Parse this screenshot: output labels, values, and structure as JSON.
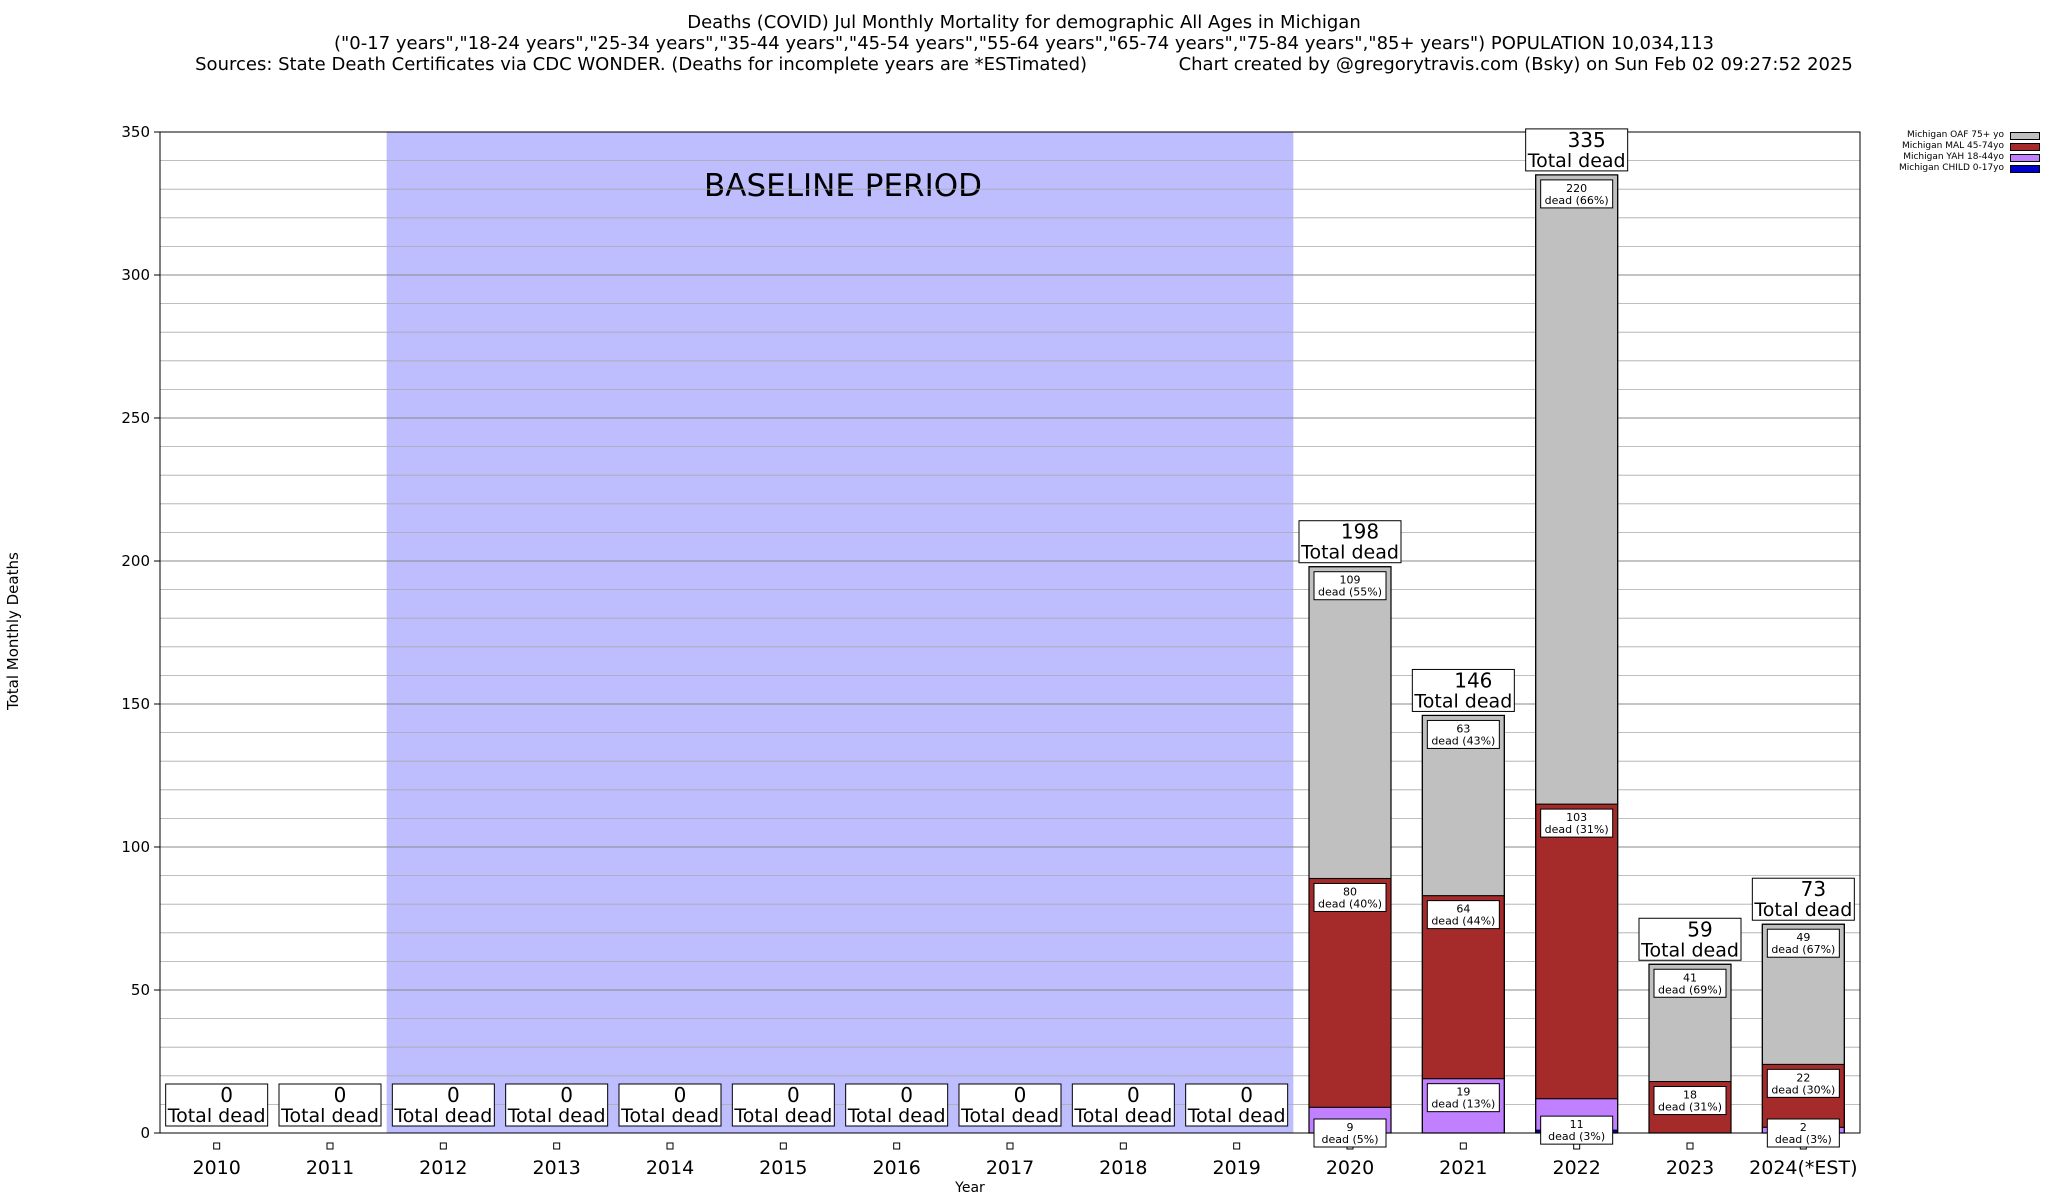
{
  "title_lines": [
    "Deaths (COVID) Jul Monthly Mortality for demographic All Ages in Michigan",
    "(\"0-17 years\",\"18-24 years\",\"25-34 years\",\"35-44 years\",\"45-54 years\",\"55-64 years\",\"65-74 years\",\"75-84 years\",\"85+ years\") POPULATION 10,034,113",
    "Sources: State Death Certificates via CDC WONDER. (Deaths for incomplete years are *ESTimated)                Chart created by @gregorytravis.com (Bsky) on Sun Feb 02 09:27:52 2025"
  ],
  "chart_data": {
    "type": "bar",
    "stacked": true,
    "ylabel": "Total Monthly Deaths",
    "xlabel": "Year",
    "ylim": [
      0,
      350
    ],
    "yticks": [
      0,
      50,
      100,
      150,
      200,
      250,
      300,
      350
    ],
    "ygrid_step": 10,
    "categories": [
      "2010",
      "2011",
      "2012",
      "2013",
      "2014",
      "2015",
      "2016",
      "2017",
      "2018",
      "2019",
      "2020",
      "2021",
      "2022",
      "2023",
      "2024(*EST)"
    ],
    "baseline": {
      "label": "BASELINE PERIOD",
      "from": "2012",
      "to": "2019",
      "color": "#bebefe"
    },
    "series": [
      {
        "name": "Michigan CHILD 0-17yo",
        "color": "#0000cc",
        "values": [
          0,
          0,
          0,
          0,
          0,
          0,
          0,
          0,
          0,
          0,
          0,
          0,
          1,
          0,
          0
        ]
      },
      {
        "name": "Michigan YAH 18-44yo",
        "color": "#c080ff",
        "values": [
          0,
          0,
          0,
          0,
          0,
          0,
          0,
          0,
          0,
          0,
          9,
          19,
          11,
          0,
          2
        ]
      },
      {
        "name": "Michigan MAL 45-74yo",
        "color": "#a52a2a",
        "values": [
          0,
          0,
          0,
          0,
          0,
          0,
          0,
          0,
          0,
          0,
          80,
          64,
          103,
          18,
          22
        ]
      },
      {
        "name": "Michigan OAF 75+ yo",
        "color": "#c0c0c0",
        "values": [
          0,
          0,
          0,
          0,
          0,
          0,
          0,
          0,
          0,
          0,
          109,
          63,
          220,
          41,
          49
        ]
      }
    ],
    "totals": [
      0,
      0,
      0,
      0,
      0,
      0,
      0,
      0,
      0,
      0,
      198,
      146,
      335,
      59,
      73
    ],
    "total_label_suffix": "Total dead",
    "segment_labels": [
      {
        "category": "2020",
        "series": "Michigan OAF 75+ yo",
        "value": 109,
        "text": "dead (55%)"
      },
      {
        "category": "2020",
        "series": "Michigan MAL 45-74yo",
        "value": 80,
        "text": "dead (40%)"
      },
      {
        "category": "2020",
        "series": "Michigan YAH 18-44yo",
        "value": 9,
        "text": "dead (5%)"
      },
      {
        "category": "2021",
        "series": "Michigan OAF 75+ yo",
        "value": 63,
        "text": "dead (43%)"
      },
      {
        "category": "2021",
        "series": "Michigan MAL 45-74yo",
        "value": 64,
        "text": "dead (44%)"
      },
      {
        "category": "2021",
        "series": "Michigan YAH 18-44yo",
        "value": 19,
        "text": "dead (13%)"
      },
      {
        "category": "2022",
        "series": "Michigan OAF 75+ yo",
        "value": 220,
        "text": "dead (66%)"
      },
      {
        "category": "2022",
        "series": "Michigan MAL 45-74yo",
        "value": 103,
        "text": "dead (31%)"
      },
      {
        "category": "2022",
        "series": "Michigan YAH 18-44yo",
        "value": 11,
        "text": "dead (3%)"
      },
      {
        "category": "2023",
        "series": "Michigan OAF 75+ yo",
        "value": 41,
        "text": "dead (69%)"
      },
      {
        "category": "2023",
        "series": "Michigan MAL 45-74yo",
        "value": 18,
        "text": "dead (31%)"
      },
      {
        "category": "2024(*EST)",
        "series": "Michigan OAF 75+ yo",
        "value": 49,
        "text": "dead (67%)"
      },
      {
        "category": "2024(*EST)",
        "series": "Michigan MAL 45-74yo",
        "value": 22,
        "text": "dead (30%)"
      },
      {
        "category": "2024(*EST)",
        "series": "Michigan YAH 18-44yo",
        "value": 2,
        "text": "dead (3%)"
      }
    ],
    "legend_position": "top-right",
    "legend_order": [
      "Michigan OAF 75+ yo",
      "Michigan MAL 45-74yo",
      "Michigan YAH 18-44yo",
      "Michigan CHILD 0-17yo"
    ]
  }
}
